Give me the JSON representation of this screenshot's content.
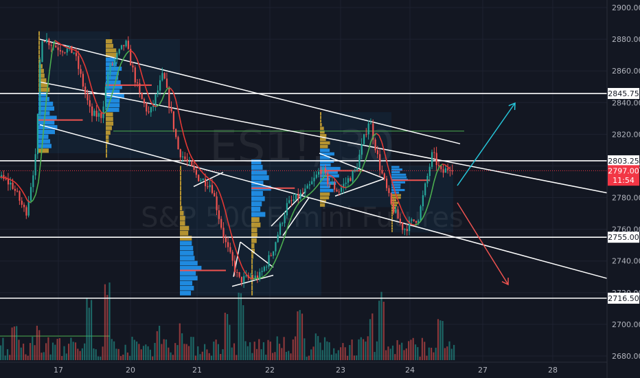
{
  "chart_data": {
    "type": "candlestick",
    "title": "",
    "watermark_symbol": "ES1!, 30",
    "watermark_name": "S&P 500 E-mini Futures",
    "xlabel": "",
    "ylabel": "",
    "y_axis": {
      "min": 2680,
      "max": 2900,
      "position": "right"
    },
    "y_ticks": [
      "2900.00",
      "2880.00",
      "2860.00",
      "2840.00",
      "2820.00",
      "2800.00",
      "2780.00",
      "2760.00",
      "2740.00",
      "2720.00",
      "2700.00",
      "2680.00"
    ],
    "x_ticks": [
      "17",
      "20",
      "21",
      "22",
      "23",
      "24",
      "27",
      "28"
    ],
    "price_labels": [
      {
        "text": "2845.75",
        "value": 2845.75,
        "kind": "level"
      },
      {
        "text": "2803.25",
        "value": 2803.25,
        "kind": "level"
      },
      {
        "text": "2797.00",
        "value": 2797.0,
        "kind": "last"
      },
      {
        "text": "11:54",
        "value": 2791.0,
        "kind": "countdown"
      },
      {
        "text": "2755.00",
        "value": 2755.0,
        "kind": "level"
      },
      {
        "text": "2716.50",
        "value": 2716.5,
        "kind": "level"
      }
    ],
    "horizontal_levels": [
      2845.75,
      2803.25,
      2755.0,
      2716.5
    ],
    "last_price": 2797.0,
    "grid": true,
    "legend": "none",
    "colors": {
      "background": "#131722",
      "up": "#26a69a",
      "down": "#ef5350",
      "level_line": "#ffffff",
      "channel_line": "#ffffff",
      "moving_average_down": "#e53935",
      "moving_average_up": "#4caf50",
      "volume_profile_value_area": "#2196f3",
      "volume_profile_outside": "#c8a032",
      "arrow_up": "#26c6da",
      "arrow_down": "#ef5350",
      "last_price_tag": "#f23645"
    },
    "annotations": [
      {
        "type": "arrow",
        "direction": "up",
        "color": "#26c6da"
      },
      {
        "type": "arrow",
        "direction": "down",
        "color": "#ef5350"
      }
    ]
  }
}
